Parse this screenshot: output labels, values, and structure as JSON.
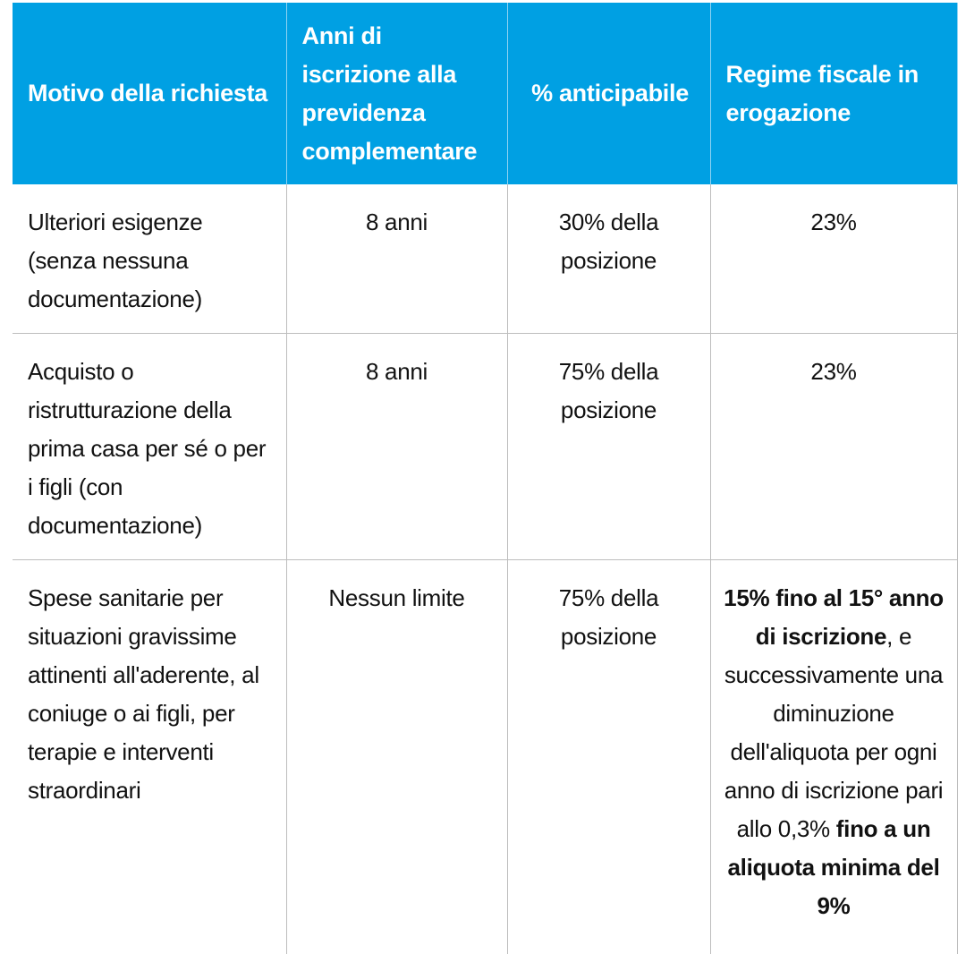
{
  "table": {
    "headers": [
      "Motivo della richiesta",
      "Anni di iscrizione alla previdenza complementare",
      "% anticipabile",
      "Regime fiscale in erogazione"
    ],
    "rows": [
      {
        "motivo": "Ulteriori esigenze (senza nessuna documentazione)",
        "anni": "8 anni",
        "percentuale": "30% della posizione",
        "regime": "23%"
      },
      {
        "motivo": "Acquisto o ristrutturazione della prima casa per sé o per i figli (con documentazione)",
        "anni": "8 anni",
        "percentuale": "75% della posizione",
        "regime": "23%"
      },
      {
        "motivo": "Spese sanitarie per situazioni gravissime attinenti all'aderente, al coniuge o ai figli, per terapie e interventi straordinari",
        "anni": "Nessun limite",
        "percentuale": "75% della posizione",
        "regime_parts": {
          "bold1": "15% fino al 15° anno di iscrizione",
          "text1": ", e successivamente una diminuzione dell'aliquota per ogni anno di iscrizione pari allo 0,3% ",
          "bold2": "fino a un aliquota minima del 9%"
        }
      }
    ]
  }
}
